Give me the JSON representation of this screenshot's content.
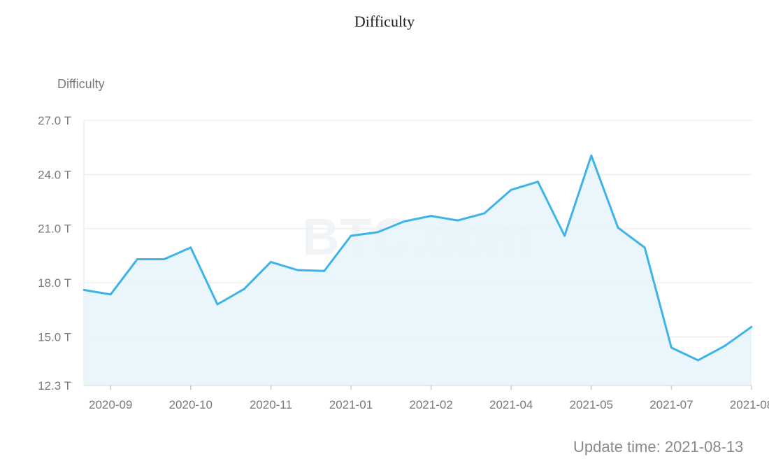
{
  "title": "Difficulty",
  "update_time": "Update time: 2021-08-13",
  "watermark": "BTC.com",
  "colors": {
    "line": "#3cb4ea",
    "area": "#e6f5fb",
    "grid": "#eeeeee"
  },
  "chart_data": {
    "type": "area",
    "title": "Difficulty",
    "ylabel": "Difficulty",
    "xlabel": "",
    "ylim": [
      12.3,
      27.0
    ],
    "y_ticks": [
      "27.0 T",
      "24.0 T",
      "21.0 T",
      "18.0 T",
      "15.0 T",
      "12.3 T"
    ],
    "y_tick_values": [
      27.0,
      24.0,
      21.0,
      18.0,
      15.0,
      12.3
    ],
    "x_ticks": [
      "2020-09",
      "2020-10",
      "2020-11",
      "2021-01",
      "2021-02",
      "2021-04",
      "2021-05",
      "2021-07",
      "2021-08"
    ],
    "series": [
      {
        "values": [
          17.6,
          17.35,
          19.3,
          19.3,
          19.95,
          16.8,
          17.65,
          19.15,
          18.7,
          18.65,
          20.6,
          20.8,
          21.4,
          21.7,
          21.45,
          21.85,
          23.15,
          23.6,
          20.6,
          25.05,
          21.05,
          19.95,
          14.4,
          13.7,
          14.5,
          15.55
        ]
      }
    ]
  }
}
